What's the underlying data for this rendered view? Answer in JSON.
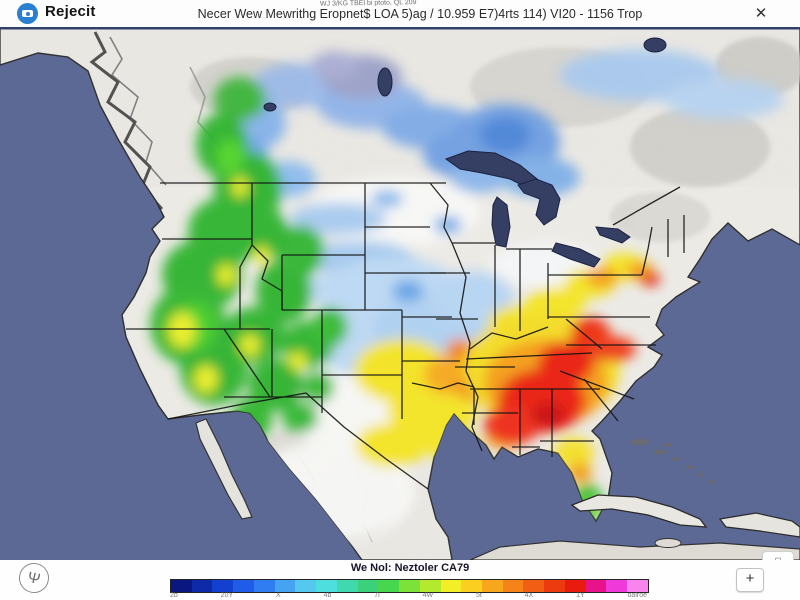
{
  "header": {
    "app_name": "Rejecit",
    "title": "Necer Wew Mewrithg Eropnet$ LOA 5)ag / 10.959 E7)4rts 114) VI20 - 1156 Trop",
    "title_note": "WJ 3/KG TBEl bi ptoto, QL 209",
    "close_icon": "✕"
  },
  "map": {
    "kind": "weather-model-map-north-america",
    "ocean_color": "#5d6995",
    "land_color": "#eceae5",
    "lakes_color": "#353f63",
    "widget_icons": [
      "▭",
      "∶",
      "▷"
    ]
  },
  "legend": {
    "title": "We Nol: Neztoler CA79",
    "colorbar": [
      "#0a1780",
      "#0f2aa8",
      "#1440d0",
      "#1f5ce8",
      "#2f7df0",
      "#45a3f2",
      "#55c8f0",
      "#4fdede",
      "#3fd9ad",
      "#3ad17a",
      "#46d74e",
      "#7ce23a",
      "#b4ea2e",
      "#f2ee28",
      "#fbcf20",
      "#f7a71c",
      "#f4831a",
      "#f15e14",
      "#ed3b10",
      "#e91a0e",
      "#e8128a",
      "#ee3ad8",
      "#f984ee"
    ],
    "ticks": [
      "2b",
      "20Y",
      "X",
      "4b",
      "7l",
      "4W",
      "5t",
      "4X",
      "1Y",
      "oalroe"
    ]
  },
  "controls": {
    "compass_glyph": "Ψ",
    "zoom_in_label": "+"
  }
}
